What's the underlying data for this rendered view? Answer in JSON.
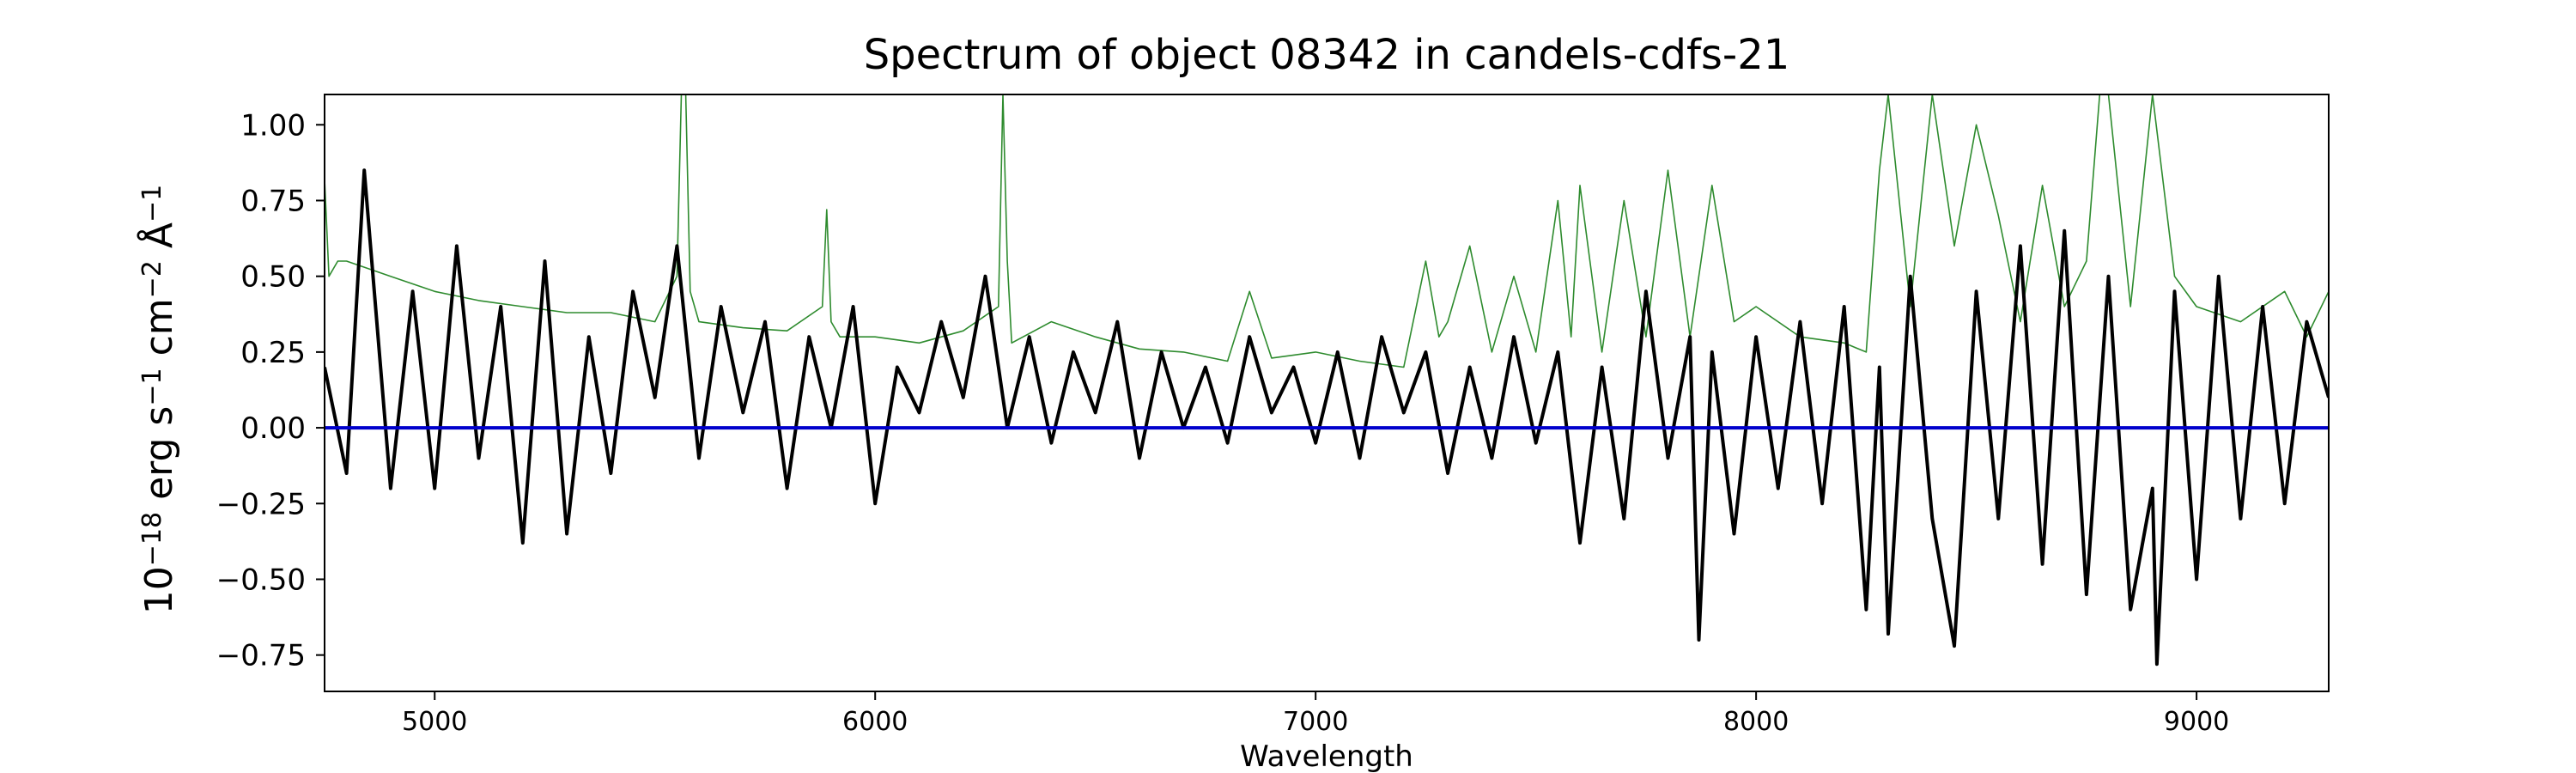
{
  "chart_data": {
    "type": "line",
    "title": "Spectrum of object 08342 in candels-cdfs-21",
    "xlabel": "Wavelength",
    "ylabel_parts": [
      "10",
      "−18",
      " erg s",
      "−1",
      " cm",
      "−2",
      " Å",
      "−1"
    ],
    "xlim": [
      4750,
      9300
    ],
    "ylim": [
      -0.87,
      1.1
    ],
    "xticks": [
      5000,
      6000,
      7000,
      8000,
      9000
    ],
    "xtick_labels": [
      "5000",
      "6000",
      "7000",
      "8000",
      "9000"
    ],
    "yticks": [
      1.0,
      0.75,
      0.5,
      0.25,
      0.0,
      -0.25,
      -0.5,
      -0.75
    ],
    "ytick_labels": [
      "1.00",
      "0.75",
      "0.50",
      "0.25",
      "0.00",
      "−0.25",
      "−0.50",
      "−0.75"
    ],
    "grid": false,
    "series": [
      {
        "color": "#000000",
        "linewidth": "thick",
        "x": [
          4750,
          4800,
          4840,
          4900,
          4950,
          5000,
          5050,
          5100,
          5150,
          5200,
          5250,
          5300,
          5350,
          5400,
          5450,
          5500,
          5550,
          5600,
          5650,
          5700,
          5750,
          5800,
          5850,
          5900,
          5950,
          6000,
          6050,
          6100,
          6150,
          6200,
          6250,
          6300,
          6350,
          6400,
          6450,
          6500,
          6550,
          6600,
          6650,
          6700,
          6750,
          6800,
          6850,
          6900,
          6950,
          7000,
          7050,
          7100,
          7150,
          7200,
          7250,
          7300,
          7350,
          7400,
          7450,
          7500,
          7550,
          7600,
          7650,
          7700,
          7750,
          7800,
          7850,
          7870,
          7900,
          7950,
          8000,
          8050,
          8100,
          8150,
          8200,
          8250,
          8280,
          8300,
          8350,
          8400,
          8450,
          8500,
          8550,
          8600,
          8650,
          8700,
          8750,
          8800,
          8850,
          8900,
          8910,
          8950,
          9000,
          9050,
          9100,
          9150,
          9200,
          9250,
          9300
        ],
        "y": [
          0.2,
          -0.15,
          0.85,
          -0.2,
          0.45,
          -0.2,
          0.6,
          -0.1,
          0.4,
          -0.38,
          0.55,
          -0.35,
          0.3,
          -0.15,
          0.45,
          0.1,
          0.6,
          -0.1,
          0.4,
          0.05,
          0.35,
          -0.2,
          0.3,
          0.0,
          0.4,
          -0.25,
          0.2,
          0.05,
          0.35,
          0.1,
          0.5,
          0.0,
          0.3,
          -0.05,
          0.25,
          0.05,
          0.35,
          -0.1,
          0.25,
          0.0,
          0.2,
          -0.05,
          0.3,
          0.05,
          0.2,
          -0.05,
          0.25,
          -0.1,
          0.3,
          0.05,
          0.25,
          -0.15,
          0.2,
          -0.1,
          0.3,
          -0.05,
          0.25,
          -0.38,
          0.2,
          -0.3,
          0.45,
          -0.1,
          0.3,
          -0.7,
          0.25,
          -0.35,
          0.3,
          -0.2,
          0.35,
          -0.25,
          0.4,
          -0.6,
          0.2,
          -0.68,
          0.5,
          -0.3,
          -0.72,
          0.45,
          -0.3,
          0.6,
          -0.45,
          0.65,
          -0.55,
          0.5,
          -0.6,
          -0.2,
          -0.78,
          0.45,
          -0.5,
          0.5,
          -0.3,
          0.4,
          -0.25,
          0.35,
          0.1
        ]
      },
      {
        "color": "#2e8b2e",
        "linewidth": "thin",
        "x": [
          4750,
          4760,
          4780,
          4800,
          4900,
          5000,
          5100,
          5200,
          5300,
          5400,
          5500,
          5550,
          5560,
          5570,
          5580,
          5600,
          5700,
          5800,
          5880,
          5890,
          5900,
          5920,
          6000,
          6100,
          6200,
          6280,
          6290,
          6300,
          6310,
          6400,
          6500,
          6600,
          6700,
          6800,
          6850,
          6900,
          7000,
          7100,
          7200,
          7250,
          7280,
          7300,
          7350,
          7400,
          7450,
          7500,
          7550,
          7580,
          7600,
          7650,
          7700,
          7750,
          7800,
          7850,
          7900,
          7950,
          8000,
          8100,
          8200,
          8250,
          8280,
          8300,
          8350,
          8400,
          8450,
          8500,
          8550,
          8600,
          8650,
          8700,
          8750,
          8780,
          8800,
          8850,
          8900,
          8950,
          9000,
          9100,
          9200,
          9250,
          9300
        ],
        "y": [
          0.82,
          0.5,
          0.55,
          0.55,
          0.5,
          0.45,
          0.42,
          0.4,
          0.38,
          0.38,
          0.35,
          0.5,
          1.1,
          1.1,
          0.45,
          0.35,
          0.33,
          0.32,
          0.4,
          0.72,
          0.35,
          0.3,
          0.3,
          0.28,
          0.32,
          0.4,
          1.1,
          0.55,
          0.28,
          0.35,
          0.3,
          0.26,
          0.25,
          0.22,
          0.45,
          0.23,
          0.25,
          0.22,
          0.2,
          0.55,
          0.3,
          0.35,
          0.6,
          0.25,
          0.5,
          0.25,
          0.75,
          0.3,
          0.8,
          0.25,
          0.75,
          0.3,
          0.85,
          0.3,
          0.8,
          0.35,
          0.4,
          0.3,
          0.28,
          0.25,
          0.85,
          1.1,
          0.4,
          1.1,
          0.6,
          1.0,
          0.7,
          0.35,
          0.8,
          0.4,
          0.55,
          1.1,
          1.1,
          0.4,
          1.1,
          0.5,
          0.4,
          0.35,
          0.45,
          0.3,
          0.45
        ]
      },
      {
        "color": "#0000cc",
        "linewidth": "thick",
        "x": [
          4750,
          9300
        ],
        "y": [
          0,
          0
        ]
      }
    ]
  }
}
